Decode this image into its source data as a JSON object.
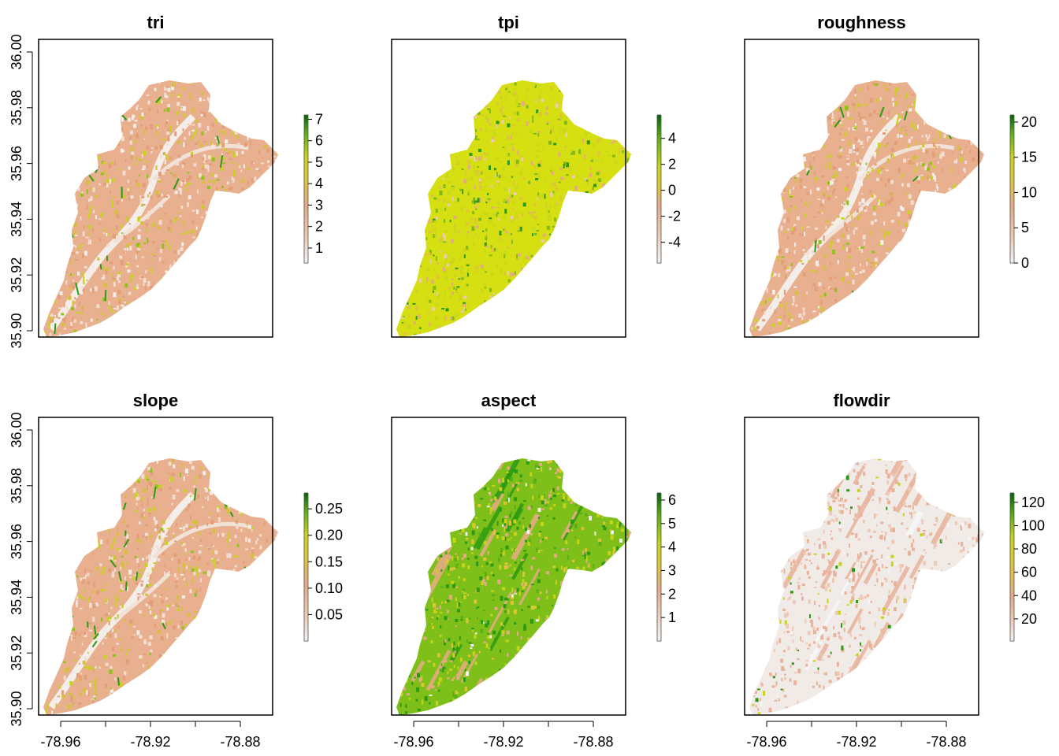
{
  "palette": [
    "#f2f2f2",
    "#eec9b6",
    "#e8a987",
    "#e0c43a",
    "#c8d41c",
    "#8fc31a",
    "#2d9a14",
    "#006400"
  ],
  "axes": {
    "y_ticks": [
      "36.00",
      "35.98",
      "35.96",
      "35.94",
      "35.92",
      "35.90"
    ],
    "x_ticks": [
      "-78.96",
      "-78.92",
      "-78.88"
    ]
  },
  "panels": [
    {
      "title": "tri",
      "legend": [
        "7",
        "6",
        "5",
        "4",
        "3",
        "2",
        "1"
      ],
      "scheme": "pink-orange",
      "legend_range": [
        0.3,
        7.2
      ]
    },
    {
      "title": "tpi",
      "legend": [
        "4",
        "2",
        "0",
        "-2",
        "-4"
      ],
      "scheme": "yellow",
      "legend_range": [
        -5.6,
        5.8
      ]
    },
    {
      "title": "roughness",
      "legend": [
        "20",
        "15",
        "10",
        "5",
        "0"
      ],
      "scheme": "pink-orange",
      "legend_range": [
        0,
        21
      ]
    },
    {
      "title": "slope",
      "legend": [
        "0.25",
        "0.20",
        "0.15",
        "0.10",
        "0.05"
      ],
      "scheme": "pink-orange",
      "legend_range": [
        0.0,
        0.28
      ]
    },
    {
      "title": "aspect",
      "legend": [
        "6",
        "5",
        "4",
        "3",
        "2",
        "1"
      ],
      "scheme": "green",
      "legend_range": [
        0.0,
        6.3
      ]
    },
    {
      "title": "flowdir",
      "legend": [
        "120",
        "100",
        "80",
        "60",
        "40",
        "20"
      ],
      "scheme": "sparse-pink",
      "legend_range": [
        1,
        128
      ]
    }
  ]
}
